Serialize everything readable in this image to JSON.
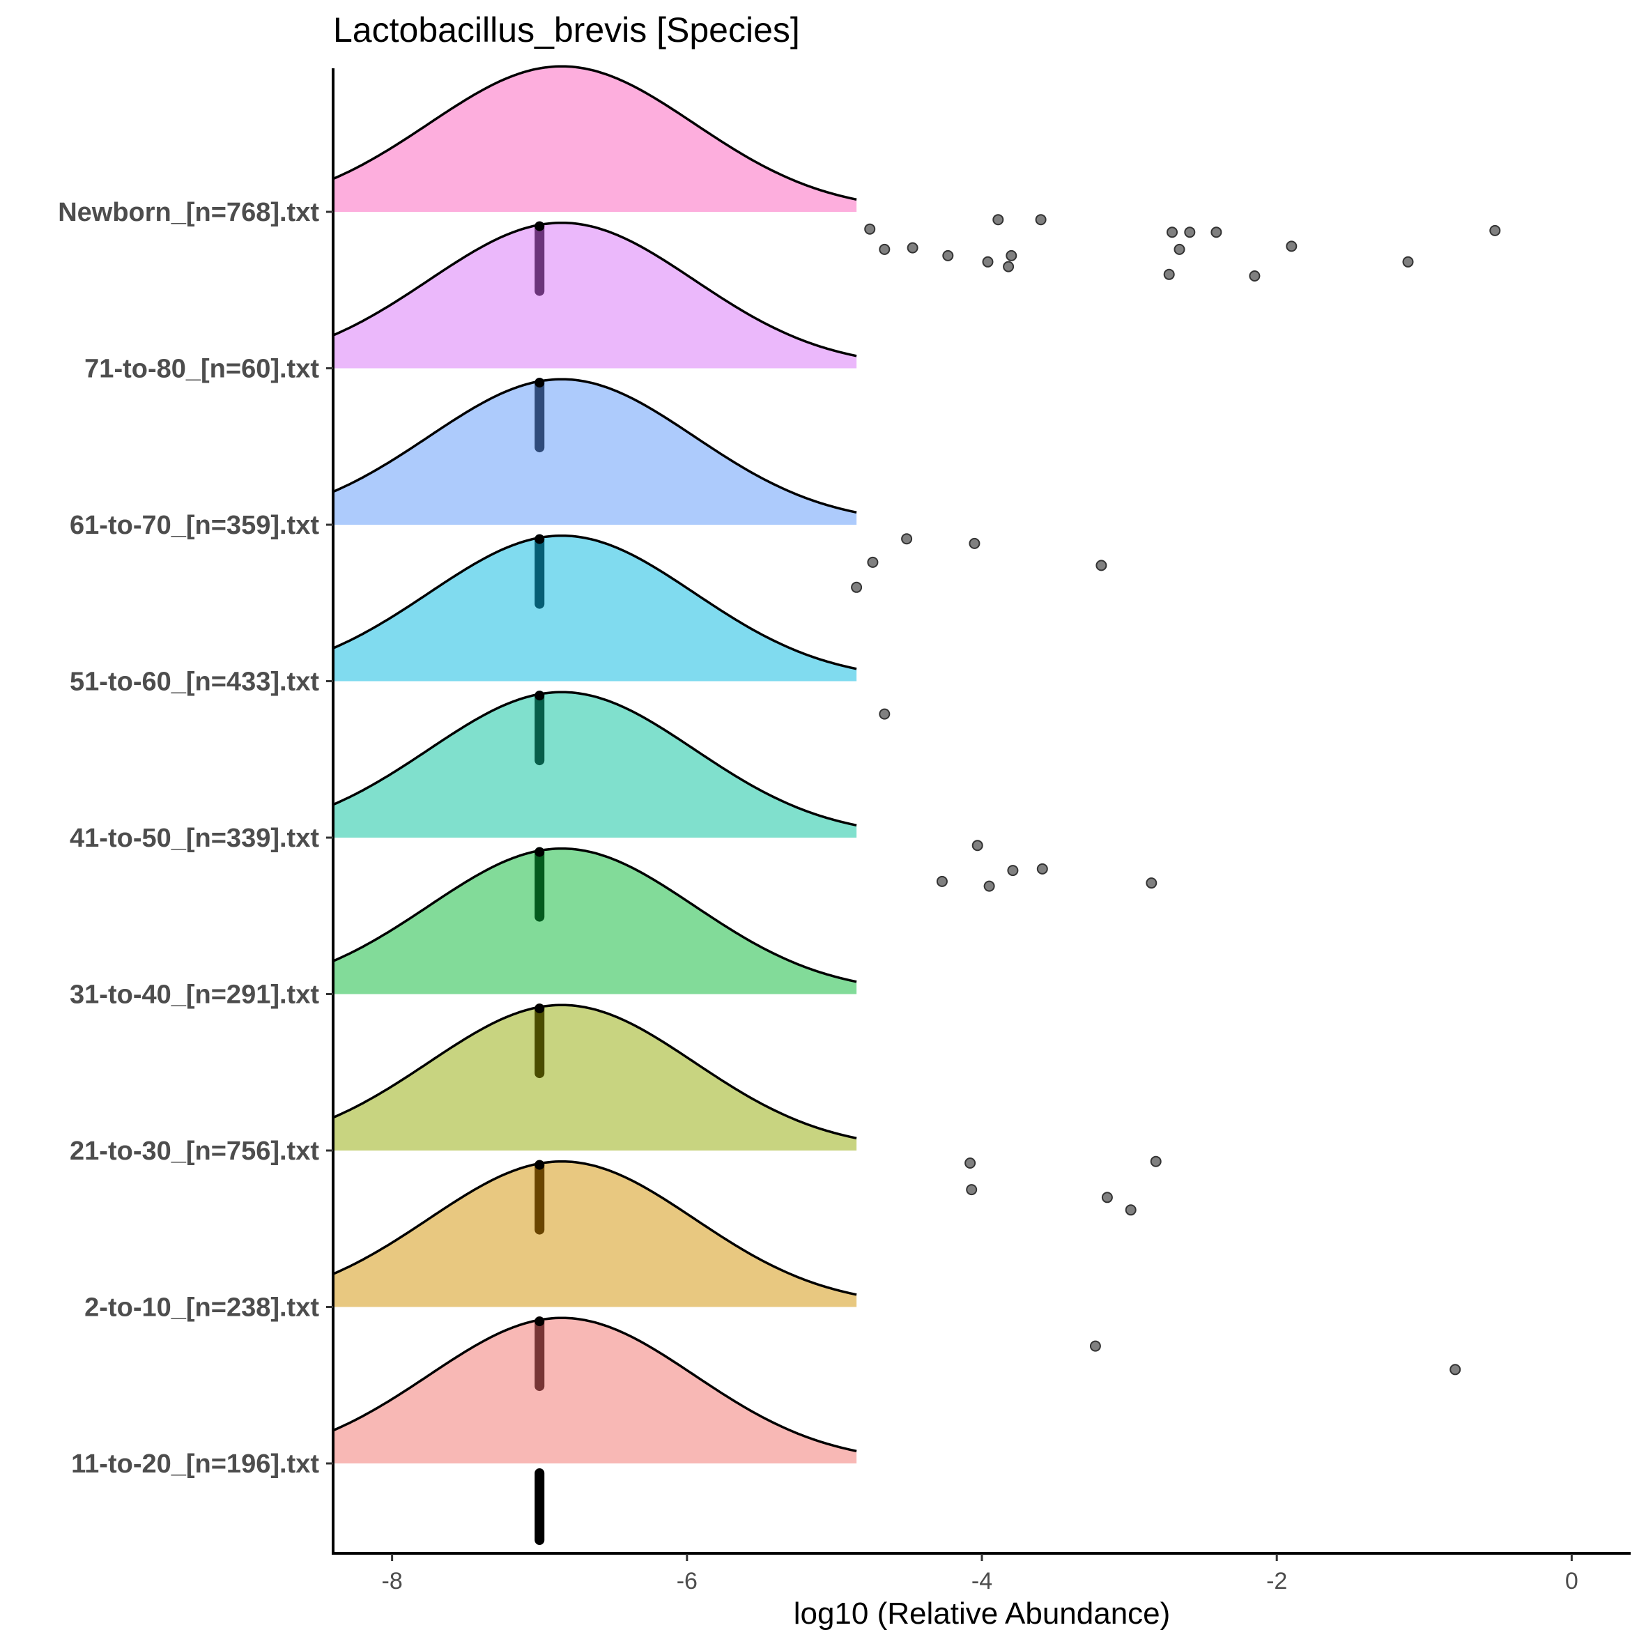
{
  "chart_data": {
    "type": "ridgeline",
    "title": "Lactobacillus_brevis [Species]",
    "xlabel": "log10 (Relative Abundance)",
    "ylabel": "",
    "xlim": [
      -8.4,
      0.4
    ],
    "x_ticks": [
      -8,
      -6,
      -4,
      -2,
      0
    ],
    "x_tick_labels": [
      "-8",
      "-6",
      "-4",
      "-2",
      "0"
    ],
    "grid": false,
    "legend": "none",
    "density": {
      "mean": -6.85,
      "sd": 0.9,
      "x_end": -4.85,
      "peak_scale": 0.93
    },
    "median_marker_value": -7.0,
    "bottom_marker_value": -7.0,
    "point_color": "#808080",
    "groups": [
      {
        "label": "Newborn_[n=768].txt",
        "fill": "#FDAEDD",
        "marker_color": "#000000",
        "points": [
          [
            -4.76,
            -0.11
          ],
          [
            -3.89,
            -0.05
          ],
          [
            -3.6,
            -0.05
          ],
          [
            -4.66,
            -0.24
          ],
          [
            -4.47,
            -0.23
          ],
          [
            -4.23,
            -0.28
          ],
          [
            -3.96,
            -0.32
          ],
          [
            -3.8,
            -0.28
          ],
          [
            -3.82,
            -0.35
          ],
          [
            -2.71,
            -0.13
          ],
          [
            -2.59,
            -0.13
          ],
          [
            -2.41,
            -0.13
          ],
          [
            -2.66,
            -0.24
          ],
          [
            -1.9,
            -0.22
          ],
          [
            -2.73,
            -0.4
          ],
          [
            -2.15,
            -0.41
          ],
          [
            -1.11,
            -0.32
          ],
          [
            -0.52,
            -0.12
          ]
        ]
      },
      {
        "label": "71-to-80_[n=60].txt",
        "fill": "#EBB8FB",
        "marker_color": "#6B347A",
        "points": []
      },
      {
        "label": "61-to-70_[n=359].txt",
        "fill": "#ADCBFC",
        "marker_color": "#2F4B7A",
        "points": [
          [
            -4.51,
            -0.09
          ],
          [
            -4.05,
            -0.12
          ],
          [
            -4.74,
            -0.24
          ],
          [
            -3.19,
            -0.26
          ],
          [
            -4.85,
            -0.4
          ]
        ]
      },
      {
        "label": "51-to-60_[n=433].txt",
        "fill": "#80DBEF",
        "marker_color": "#065E74",
        "points": [
          [
            -4.66,
            -0.21
          ]
        ]
      },
      {
        "label": "41-to-50_[n=339].txt",
        "fill": "#80E0CD",
        "marker_color": "#075E4A",
        "points": [
          [
            -4.03,
            -0.05
          ],
          [
            -4.27,
            -0.28
          ],
          [
            -3.95,
            -0.31
          ],
          [
            -3.79,
            -0.21
          ],
          [
            -3.59,
            -0.2
          ],
          [
            -2.85,
            -0.29
          ]
        ]
      },
      {
        "label": "31-to-40_[n=291].txt",
        "fill": "#82DB99",
        "marker_color": "#045A1E",
        "points": []
      },
      {
        "label": "21-to-30_[n=756].txt",
        "fill": "#C8D480",
        "marker_color": "#4A4C00",
        "points": [
          [
            -4.08,
            -0.08
          ],
          [
            -4.07,
            -0.25
          ],
          [
            -2.82,
            -0.07
          ],
          [
            -3.15,
            -0.3
          ],
          [
            -2.99,
            -0.38
          ]
        ]
      },
      {
        "label": "2-to-10_[n=238].txt",
        "fill": "#E8C880",
        "marker_color": "#6A4500",
        "points": [
          [
            -3.23,
            -0.25
          ],
          [
            -0.79,
            -0.4
          ]
        ]
      },
      {
        "label": "11-to-20_[n=196].txt",
        "fill": "#F8B8B5",
        "marker_color": "#773535",
        "points": []
      }
    ]
  }
}
